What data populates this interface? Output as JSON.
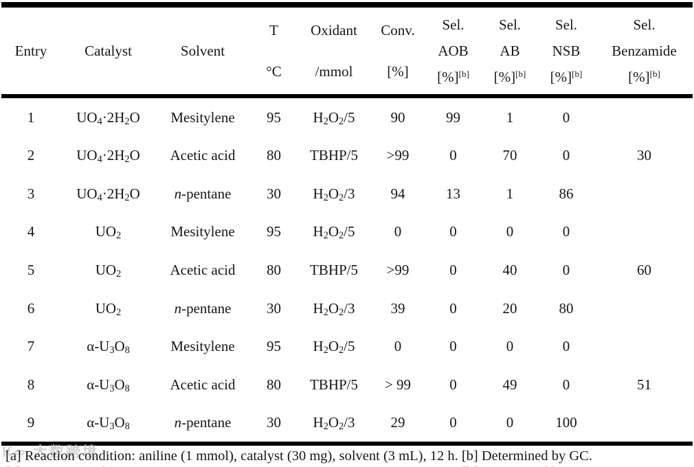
{
  "table": {
    "columns": {
      "entry": "Entry",
      "catalyst": "Catalyst",
      "solvent": "Solvent",
      "t": [
        "T",
        "°C"
      ],
      "oxidant": [
        "Oxidant",
        "/mmol"
      ],
      "conv": [
        "Conv.",
        "[%]"
      ],
      "sel_aob": [
        "Sel.",
        "AOB",
        "[%]^[b]^"
      ],
      "sel_ab": [
        "Sel.",
        "AB",
        "[%]^[b]^"
      ],
      "sel_nsb": [
        "Sel.",
        "NSB",
        "[%]^[b]^"
      ],
      "sel_benzamide": [
        "Sel.",
        "Benzamide",
        "[%]^[b]^"
      ]
    },
    "rows": [
      {
        "entry": "1",
        "catalyst": "UO~4~·2H~2~O",
        "solvent": "Mesitylene",
        "t": "95",
        "oxidant": "H~2~O~2~/5",
        "conv": "90",
        "aob": "99",
        "ab": "1",
        "nsb": "0",
        "benzamide": ""
      },
      {
        "entry": "2",
        "catalyst": "UO~4~·2H~2~O",
        "solvent": "Acetic acid",
        "t": "80",
        "oxidant": "TBHP/5",
        "conv": ">99",
        "aob": "0",
        "ab": "70",
        "nsb": "0",
        "benzamide": "30"
      },
      {
        "entry": "3",
        "catalyst": "UO~4~·2H~2~O",
        "solvent": "*n*-pentane",
        "t": "30",
        "oxidant": "H~2~O~2~/3",
        "conv": "94",
        "aob": "13",
        "ab": "1",
        "nsb": "86",
        "benzamide": ""
      },
      {
        "entry": "4",
        "catalyst": "UO~2~",
        "solvent": "Mesitylene",
        "t": "95",
        "oxidant": "H~2~O~2~/5",
        "conv": "0",
        "aob": "0",
        "ab": "0",
        "nsb": "0",
        "benzamide": ""
      },
      {
        "entry": "5",
        "catalyst": "UO~2~",
        "solvent": "Acetic acid",
        "t": "80",
        "oxidant": "TBHP/5",
        "conv": ">99",
        "aob": "0",
        "ab": "40",
        "nsb": "0",
        "benzamide": "60"
      },
      {
        "entry": "6",
        "catalyst": "UO~2~",
        "solvent": "*n*-pentane",
        "t": "30",
        "oxidant": "H~2~O~2~/3",
        "conv": "39",
        "aob": "0",
        "ab": "20",
        "nsb": "80",
        "benzamide": ""
      },
      {
        "entry": "7",
        "catalyst": "α-U~3~O~8~",
        "solvent": "Mesitylene",
        "t": "95",
        "oxidant": "H~2~O~2~/5",
        "conv": "0",
        "aob": "0",
        "ab": "0",
        "nsb": "0",
        "benzamide": ""
      },
      {
        "entry": "8",
        "catalyst": "α-U~3~O~8~",
        "solvent": "Acetic acid",
        "t": "80",
        "oxidant": "TBHP/5",
        "conv": "> 99",
        "aob": "0",
        "ab": "49",
        "nsb": "0",
        "benzamide": "51"
      },
      {
        "entry": "9",
        "catalyst": "α-U~3~O~8~",
        "solvent": "*n*-pentane",
        "t": "30",
        "oxidant": "H~2~O~2~/3",
        "conv": "29",
        "aob": "0",
        "ab": "0",
        "nsb": "100",
        "benzamide": ""
      }
    ]
  },
  "footnote": "[a] Reaction condition: aniline (1 mmol), catalyst (30 mg), solvent (3 mL), 12 h. [b] Determined by GC.",
  "watermark": "K∞ 大数跨境",
  "colors": {
    "text": "#161616",
    "rule": "#000000",
    "watermark": "#afafaf",
    "background": "#ffffff"
  }
}
